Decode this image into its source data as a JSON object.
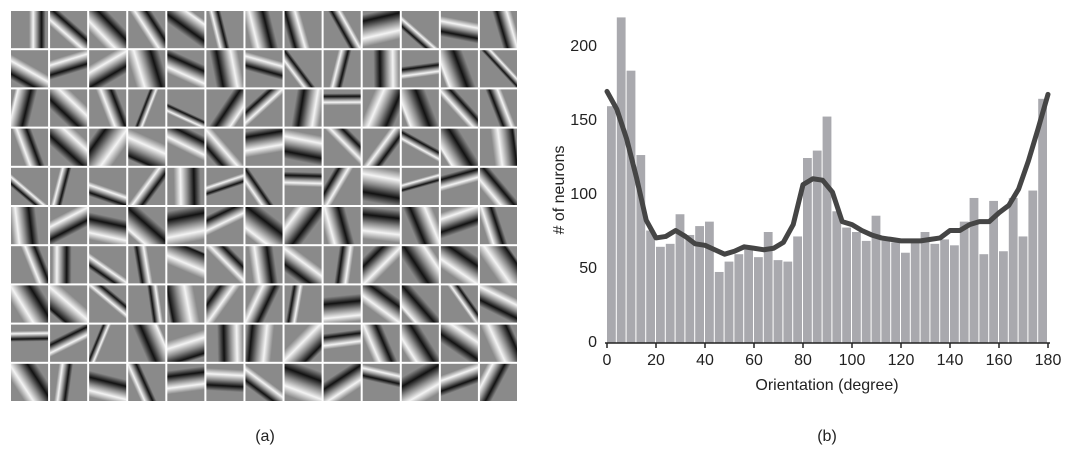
{
  "panel_a": {
    "caption": "(a)"
  },
  "chart_data": {
    "type": "histogram",
    "caption": "(b)",
    "x_label": "Orientation (degree)",
    "y_label": "# of  neurons",
    "bins": [
      0,
      4,
      8,
      12,
      16,
      20,
      24,
      28,
      32,
      36,
      40,
      44,
      48,
      52,
      56,
      60,
      64,
      68,
      72,
      76,
      80,
      84,
      88,
      92,
      96,
      100,
      104,
      108,
      112,
      116,
      120,
      124,
      128,
      132,
      136,
      140,
      144,
      148,
      152,
      156,
      160,
      164,
      168,
      172,
      176,
      180
    ],
    "values": [
      160,
      220,
      184,
      127,
      76,
      65,
      67,
      87,
      73,
      79,
      82,
      48,
      55,
      60,
      65,
      58,
      75,
      56,
      55,
      72,
      125,
      130,
      153,
      89,
      78,
      75,
      69,
      86,
      70,
      68,
      61,
      70,
      75,
      67,
      70,
      66,
      82,
      98,
      60,
      96,
      62,
      98,
      72,
      103,
      165
    ],
    "color": "#a9a9ae",
    "line": {
      "color": "#454545",
      "x": [
        0,
        4,
        8,
        12,
        16,
        20,
        24,
        28,
        32,
        36,
        40,
        44,
        48,
        52,
        56,
        60,
        64,
        68,
        72,
        76,
        80,
        84,
        88,
        92,
        96,
        100,
        104,
        108,
        112,
        116,
        120,
        124,
        128,
        132,
        136,
        140,
        144,
        148,
        152,
        156,
        160,
        164,
        168,
        172,
        176,
        180
      ],
      "values": [
        170,
        158,
        138,
        112,
        83,
        71,
        72,
        76,
        72,
        67,
        66,
        63,
        60,
        62,
        65,
        64,
        63,
        64,
        68,
        80,
        107,
        111,
        110,
        102,
        82,
        80,
        76,
        73,
        71,
        70,
        69,
        69,
        69,
        70,
        71,
        76,
        76,
        80,
        82,
        82,
        88,
        93,
        104,
        123,
        145,
        168
      ]
    },
    "xlim": [
      0,
      180
    ],
    "ylim": [
      0,
      225
    ],
    "xticks": [
      0,
      20,
      40,
      60,
      80,
      100,
      120,
      140,
      160,
      180
    ],
    "yticks": [
      0,
      50,
      100,
      150,
      200
    ]
  }
}
